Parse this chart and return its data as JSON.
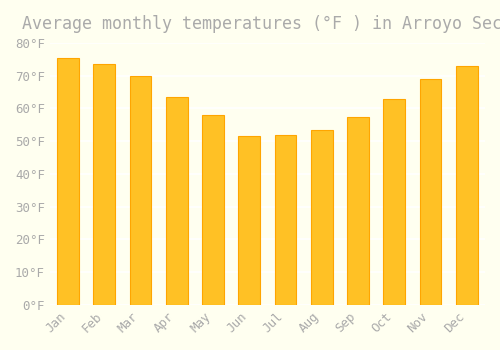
{
  "title": "Average monthly temperatures (°F ) in Arroyo Seco",
  "months": [
    "Jan",
    "Feb",
    "Mar",
    "Apr",
    "May",
    "Jun",
    "Jul",
    "Aug",
    "Sep",
    "Oct",
    "Nov",
    "Dec"
  ],
  "values": [
    75.5,
    73.5,
    70.0,
    63.5,
    58.0,
    51.5,
    52.0,
    53.5,
    57.5,
    63.0,
    69.0,
    73.0
  ],
  "bar_color_face": "#FFC125",
  "bar_color_edge": "#FFA500",
  "background_color": "#FFFFF0",
  "grid_color": "#FFFFFF",
  "text_color": "#AAAAAA",
  "ylim": [
    0,
    80
  ],
  "ytick_step": 10,
  "title_fontsize": 12,
  "tick_fontsize": 9,
  "bar_width": 0.6
}
